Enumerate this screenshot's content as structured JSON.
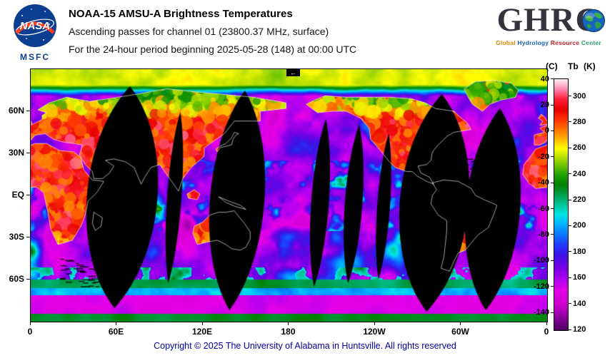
{
  "header": {
    "nasa_wordmark": "NASA",
    "msfc": "MSFC",
    "title": "NOAA-15 AMSU-A Brightness Temperatures",
    "subtitle1": "Ascending passes for channel 01 (23800.37 MHz, surface)",
    "subtitle2": "For the 24-hour period beginning 2025-05-28 (148) at 00:00 UTC"
  },
  "ghrc": {
    "wordmark": "GHRC",
    "tagline_words": [
      {
        "text": "Global",
        "color": "#d98a00"
      },
      {
        "text": "Hydrology",
        "color": "#1a5fb4"
      },
      {
        "text": "Resource",
        "color": "#c01c28"
      },
      {
        "text": "Center",
        "color": "#26a269"
      }
    ]
  },
  "map": {
    "annotation_arrow": "←",
    "no_data_color": "#000000"
  },
  "chart_data": {
    "type": "heatmap",
    "title": "NOAA-15 AMSU-A brightness temperatures, ascending passes, channel 01 (23800.37 MHz, surface), 24-hour period beginning 2025-05-28 (148) at 00:00 UTC",
    "projection": "equirectangular world map, longitude 0 eastward through 180 to 0, latitude 90N to 90S",
    "x_ticks": [
      {
        "label": "0",
        "lon": 0
      },
      {
        "label": "60E",
        "lon": 60
      },
      {
        "label": "120E",
        "lon": 120
      },
      {
        "label": "180",
        "lon": 180
      },
      {
        "label": "120W",
        "lon": 240
      },
      {
        "label": "60W",
        "lon": 300
      },
      {
        "label": "0",
        "lon": 360
      }
    ],
    "y_ticks": [
      {
        "label": "60N",
        "lat": 60
      },
      {
        "label": "30N",
        "lat": 30
      },
      {
        "label": "EQ",
        "lat": 0
      },
      {
        "label": "30S",
        "lat": -30
      },
      {
        "label": "60S",
        "lat": -60
      }
    ],
    "colorbar": {
      "title_c": "(C)",
      "title_tb": "Tb",
      "title_k": "(K)",
      "celsius_ticks": [
        40,
        20,
        0,
        -20,
        -40,
        -60,
        -80,
        -100,
        -120,
        -140
      ],
      "kelvin_ticks": [
        300,
        280,
        260,
        240,
        220,
        200,
        180,
        160,
        140,
        120
      ],
      "kelvin_range": [
        120,
        313.5
      ],
      "gradient_stops": [
        {
          "k": 120,
          "color": "#500060"
        },
        {
          "k": 130,
          "color": "#8a00a0"
        },
        {
          "k": 140,
          "color": "#cc00cc"
        },
        {
          "k": 150,
          "color": "#e600e6"
        },
        {
          "k": 158,
          "color": "#b400f0"
        },
        {
          "k": 168,
          "color": "#7800e6"
        },
        {
          "k": 178,
          "color": "#3c14e6"
        },
        {
          "k": 186,
          "color": "#1e3cff"
        },
        {
          "k": 194,
          "color": "#0a78ff"
        },
        {
          "k": 202,
          "color": "#00b4ff"
        },
        {
          "k": 209,
          "color": "#00e6e6"
        },
        {
          "k": 216,
          "color": "#00c8a0"
        },
        {
          "k": 224,
          "color": "#00a050"
        },
        {
          "k": 232,
          "color": "#008000"
        },
        {
          "k": 240,
          "color": "#20a000"
        },
        {
          "k": 248,
          "color": "#78c800"
        },
        {
          "k": 255,
          "color": "#c8e600"
        },
        {
          "k": 260,
          "color": "#ffff00"
        },
        {
          "k": 267,
          "color": "#ffb400"
        },
        {
          "k": 274,
          "color": "#ff7800"
        },
        {
          "k": 281,
          "color": "#ff3c00"
        },
        {
          "k": 290,
          "color": "#e60000"
        },
        {
          "k": 298,
          "color": "#ff1e3c"
        },
        {
          "k": 304,
          "color": "#ff6e96"
        },
        {
          "k": 308,
          "color": "#ffaac8"
        },
        {
          "k": 313,
          "color": "#ffe6f0"
        }
      ]
    },
    "legend_notes": "Oceans appear magenta/blue/cyan (low brightness temperature ~140-210 K), land masses red/orange/yellow (~250-300 K), polar band near 80N yellow-green, Antarctic coast green/cyan. Black lens-shaped vertical bands are gaps with no data between successive ascending orbital swaths; white lines are continental coastlines."
  },
  "footer": {
    "copyright": "Copyright © 2025 The University of Alabama in Huntsville.  All rights reserved"
  }
}
